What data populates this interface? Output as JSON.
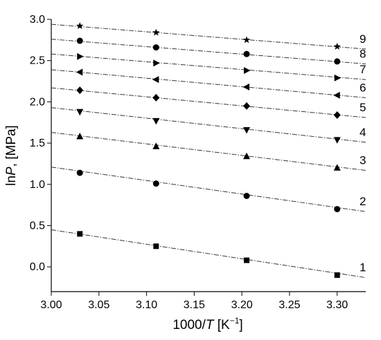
{
  "chart_data": {
    "type": "scatter",
    "xlabel": {
      "prefix": "1000/",
      "italic": "T",
      "unit_open": " [K",
      "sup": "−1",
      "unit_close": "]"
    },
    "ylabel": {
      "prefix": "ln",
      "italic": "P",
      "suffix": ", [MPa]"
    },
    "xlim": [
      3.0,
      3.33
    ],
    "ylim": [
      -0.3,
      3.0
    ],
    "xticks": [
      "3.00",
      "3.05",
      "3.10",
      "3.15",
      "3.20",
      "3.25",
      "3.30"
    ],
    "yticks": [
      "0.0",
      "0.5",
      "1.0",
      "1.5",
      "2.0",
      "2.5",
      "3.0"
    ],
    "x": [
      3.03,
      3.11,
      3.205,
      3.3
    ],
    "series": [
      {
        "label": "1",
        "marker": "square",
        "values": [
          0.4,
          0.25,
          0.08,
          -0.1
        ],
        "fit": [
          [
            3.0,
            0.45
          ],
          [
            3.33,
            -0.13
          ]
        ]
      },
      {
        "label": "2",
        "marker": "circle",
        "values": [
          1.14,
          1.01,
          0.86,
          0.7
        ],
        "fit": [
          [
            3.0,
            1.21
          ],
          [
            3.33,
            0.67
          ]
        ]
      },
      {
        "label": "3",
        "marker": "triangle-up",
        "values": [
          1.58,
          1.46,
          1.34,
          1.2
        ],
        "fit": [
          [
            3.0,
            1.63
          ],
          [
            3.33,
            1.17
          ]
        ]
      },
      {
        "label": "4",
        "marker": "triangle-down",
        "values": [
          1.88,
          1.77,
          1.66,
          1.54
        ],
        "fit": [
          [
            3.0,
            1.93
          ],
          [
            3.33,
            1.51
          ]
        ]
      },
      {
        "label": "5",
        "marker": "diamond",
        "values": [
          2.14,
          2.05,
          1.95,
          1.84
        ],
        "fit": [
          [
            3.0,
            2.17
          ],
          [
            3.33,
            1.81
          ]
        ]
      },
      {
        "label": "6",
        "marker": "triangle-left",
        "values": [
          2.36,
          2.27,
          2.18,
          2.08
        ],
        "fit": [
          [
            3.0,
            2.39
          ],
          [
            3.33,
            2.05
          ]
        ]
      },
      {
        "label": "7",
        "marker": "triangle-right",
        "values": [
          2.55,
          2.47,
          2.38,
          2.29
        ],
        "fit": [
          [
            3.0,
            2.58
          ],
          [
            3.33,
            2.27
          ]
        ]
      },
      {
        "label": "8",
        "marker": "circle",
        "values": [
          2.74,
          2.66,
          2.58,
          2.49
        ],
        "fit": [
          [
            3.0,
            2.76
          ],
          [
            3.33,
            2.46
          ]
        ]
      },
      {
        "label": "9",
        "marker": "star",
        "values": [
          2.92,
          2.84,
          2.75,
          2.67
        ],
        "fit": [
          [
            3.0,
            2.94
          ],
          [
            3.33,
            2.64
          ]
        ]
      }
    ]
  }
}
